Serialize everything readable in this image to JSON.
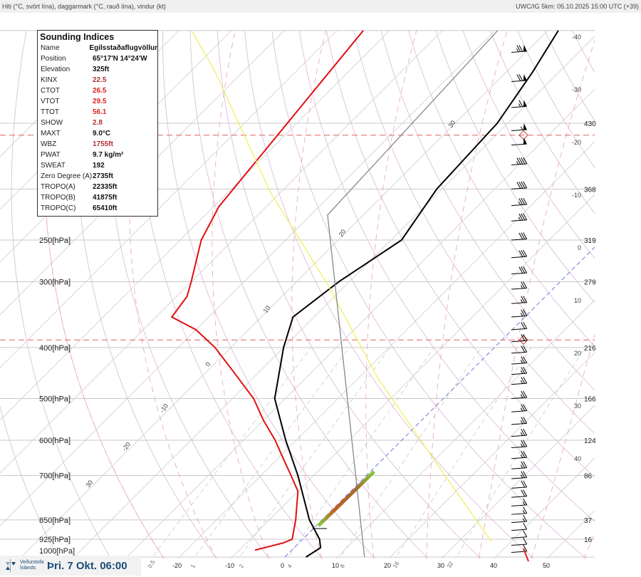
{
  "header": {
    "left": "Hiti (°C, svört lína), daggarmark (°C, rauð lína), vindur (kt)",
    "right": "UWC/IG 5km: 05.10.2025 15:00 UTC (+39)"
  },
  "indices": {
    "title": "Sounding Indices",
    "rows": [
      {
        "key": "Name",
        "value": "Egilsstaðaflugvöllur",
        "color": "#111111"
      },
      {
        "key": "Position",
        "value": "65°17'N 14°24'W",
        "color": "#111111"
      },
      {
        "key": "Elevation",
        "value": "325ft",
        "color": "#111111"
      },
      {
        "key": "KINX",
        "value": "22.5",
        "color": "#b03030"
      },
      {
        "key": "CTOT",
        "value": "26.5",
        "color": "#e02020"
      },
      {
        "key": "VTOT",
        "value": "29.5",
        "color": "#e02020"
      },
      {
        "key": "TTOT",
        "value": "56.1",
        "color": "#e02020"
      },
      {
        "key": "SHOW",
        "value": "2.8",
        "color": "#b03030"
      },
      {
        "key": "MAXT",
        "value": "9.0°C",
        "color": "#111111"
      },
      {
        "key": "WBZ",
        "value": "1755ft",
        "color": "#b03030"
      },
      {
        "key": "PWAT",
        "value": "9.7 kg/m²",
        "color": "#111111"
      },
      {
        "key": "SWEAT",
        "value": "192",
        "color": "#111111"
      },
      {
        "key": "Zero Degree (A)",
        "value": "2735ft",
        "color": "#111111"
      },
      {
        "key": "TROPO(A)",
        "value": "22335ft",
        "color": "#111111"
      },
      {
        "key": "TROPO(B)",
        "value": "41875ft",
        "color": "#111111"
      },
      {
        "key": "TROPO(C)",
        "value": "65410ft",
        "color": "#111111"
      }
    ]
  },
  "footer": {
    "org": "Veðurstofa Íslands",
    "date": "Þri. 7 Okt. 06:00"
  },
  "chart_data": {
    "type": "line",
    "title": "Skew-T sounding",
    "xlabel": "°C",
    "ylabel": "hPa",
    "ylim": [
      1000,
      100
    ],
    "isobar_labels": [
      {
        "p": 250,
        "label": "250[hPa]",
        "height": "319"
      },
      {
        "p": 300,
        "label": "300[hPa]",
        "height": "279"
      },
      {
        "p": 400,
        "label": "400[hPa]",
        "height": "216"
      },
      {
        "p": 500,
        "label": "500[hPa]",
        "height": "166"
      },
      {
        "p": 600,
        "label": "600[hPa]",
        "height": "124"
      },
      {
        "p": 700,
        "label": "700[hPa]",
        "height": "86"
      },
      {
        "p": 850,
        "label": "850[hPa]",
        "height": "37"
      },
      {
        "p": 925,
        "label": "925[hPa]",
        "height": "16"
      },
      {
        "p": 1000,
        "label": "1000[hPa]",
        "height": ""
      },
      {
        "p": 150,
        "label": "",
        "height": "430"
      },
      {
        "p": 200,
        "label": "",
        "height": "368"
      }
    ],
    "x_ticks": [
      "-20",
      "-10",
      "0",
      "10",
      "20",
      "30",
      "40",
      "50"
    ],
    "mixing_ratio_ticks": [
      "0.5",
      "1",
      "2",
      "4",
      "8",
      "16",
      "32"
    ],
    "isotherm_edge_labels": [
      "-40",
      "-30",
      "-20",
      "-10",
      "0",
      "10",
      "20",
      "30",
      "40"
    ],
    "adiabat_labels": [
      "30",
      "-20",
      "-10",
      "0",
      "10",
      "20",
      "30"
    ],
    "tropopause_levels_hpa": [
      158,
      387
    ],
    "series": [
      {
        "name": "temperature",
        "color": "#000000",
        "points": [
          [
            1000,
            4
          ],
          [
            960,
            5
          ],
          [
            925,
            3.2
          ],
          [
            850,
            -2.4
          ],
          [
            700,
            -13
          ],
          [
            600,
            -22
          ],
          [
            500,
            -32
          ],
          [
            400,
            -40
          ],
          [
            350,
            -44
          ],
          [
            300,
            -42
          ],
          [
            250,
            -38
          ],
          [
            200,
            -41
          ],
          [
            150,
            -42
          ],
          [
            120,
            -45
          ],
          [
            100,
            -48
          ]
        ]
      },
      {
        "name": "dewpoint",
        "color": "#e01010",
        "points": [
          [
            970,
            -7
          ],
          [
            940,
            -3
          ],
          [
            925,
            -2
          ],
          [
            850,
            -5
          ],
          [
            750,
            -10
          ],
          [
            700,
            -14.3
          ],
          [
            650,
            -19
          ],
          [
            600,
            -24
          ],
          [
            550,
            -30
          ],
          [
            500,
            -36
          ],
          [
            450,
            -44
          ],
          [
            400,
            -53
          ],
          [
            370,
            -60
          ],
          [
            350,
            -67
          ],
          [
            320,
            -68
          ],
          [
            300,
            -70
          ],
          [
            250,
            -76
          ],
          [
            216,
            -79
          ],
          [
            100,
            -85
          ]
        ]
      },
      {
        "name": "yellow",
        "color": "#f0f060",
        "points": [
          [
            934,
            36.2
          ],
          [
            684,
            13.2
          ],
          [
            456,
            -16.5
          ],
          [
            304,
            -43.5
          ],
          [
            203,
            -71.9
          ],
          [
            119,
            -105.7
          ],
          [
            100,
            -117.6
          ]
        ]
      },
      {
        "name": "gray",
        "color": "#888888",
        "points": [
          [
            1000,
            15.1
          ],
          [
            224,
            -56.8
          ],
          [
            100,
            -59.5
          ]
        ]
      }
    ],
    "highlight_segment": {
      "from": [
        872,
        0.4
      ],
      "to": [
        688,
        0.7
      ]
    },
    "wind_barbs": {
      "direction_deg": 260,
      "levels": [
        [
          110,
          75
        ],
        [
          125,
          70
        ],
        [
          140,
          65
        ],
        [
          155,
          55
        ],
        [
          165,
          50
        ],
        [
          180,
          45
        ],
        [
          200,
          40
        ],
        [
          215,
          35
        ],
        [
          230,
          35
        ],
        [
          250,
          30
        ],
        [
          270,
          30
        ],
        [
          290,
          30
        ],
        [
          310,
          25
        ],
        [
          330,
          25
        ],
        [
          350,
          25
        ],
        [
          370,
          20
        ],
        [
          390,
          20
        ],
        [
          410,
          20
        ],
        [
          430,
          25
        ],
        [
          450,
          25
        ],
        [
          470,
          25
        ],
        [
          500,
          25
        ],
        [
          530,
          25
        ],
        [
          560,
          25
        ],
        [
          590,
          25
        ],
        [
          620,
          25
        ],
        [
          650,
          25
        ],
        [
          680,
          25
        ],
        [
          710,
          25
        ],
        [
          740,
          20
        ],
        [
          770,
          20
        ],
        [
          800,
          15
        ],
        [
          830,
          15
        ],
        [
          860,
          15
        ],
        [
          890,
          10
        ],
        [
          920,
          10
        ],
        [
          950,
          10
        ],
        [
          980,
          10
        ]
      ]
    }
  }
}
